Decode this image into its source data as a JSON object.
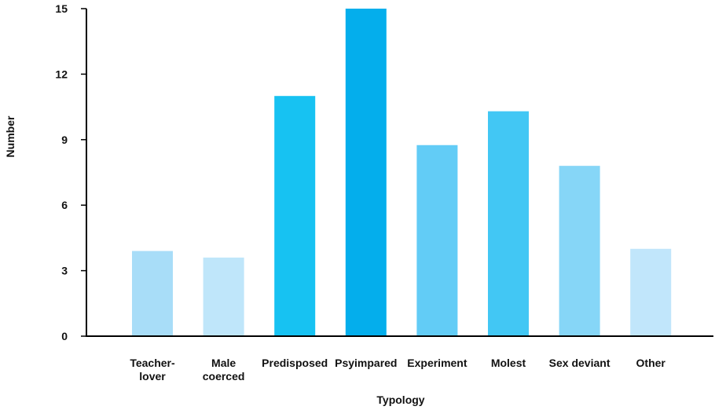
{
  "chart_data": {
    "type": "bar",
    "title": "",
    "xlabel": "Typology",
    "ylabel": "Number",
    "ylim": [
      0,
      15
    ],
    "yticks": [
      0,
      3,
      6,
      9,
      12,
      15
    ],
    "grid": false,
    "categories": [
      [
        "Teacher-",
        "lover"
      ],
      [
        "Male",
        "coerced"
      ],
      [
        "Predisposed"
      ],
      [
        "Psyimpared"
      ],
      [
        "Experiment"
      ],
      [
        "Molest"
      ],
      [
        "Sex deviant"
      ],
      [
        "Other"
      ]
    ],
    "values": [
      3.9,
      3.6,
      11.0,
      15.0,
      8.75,
      10.3,
      7.8,
      4.0
    ],
    "colors": [
      "#a8ddf8",
      "#bfe6fa",
      "#17c2f2",
      "#04aeec",
      "#62ccf6",
      "#42c7f4",
      "#86d6f7",
      "#c1e6fb"
    ]
  }
}
